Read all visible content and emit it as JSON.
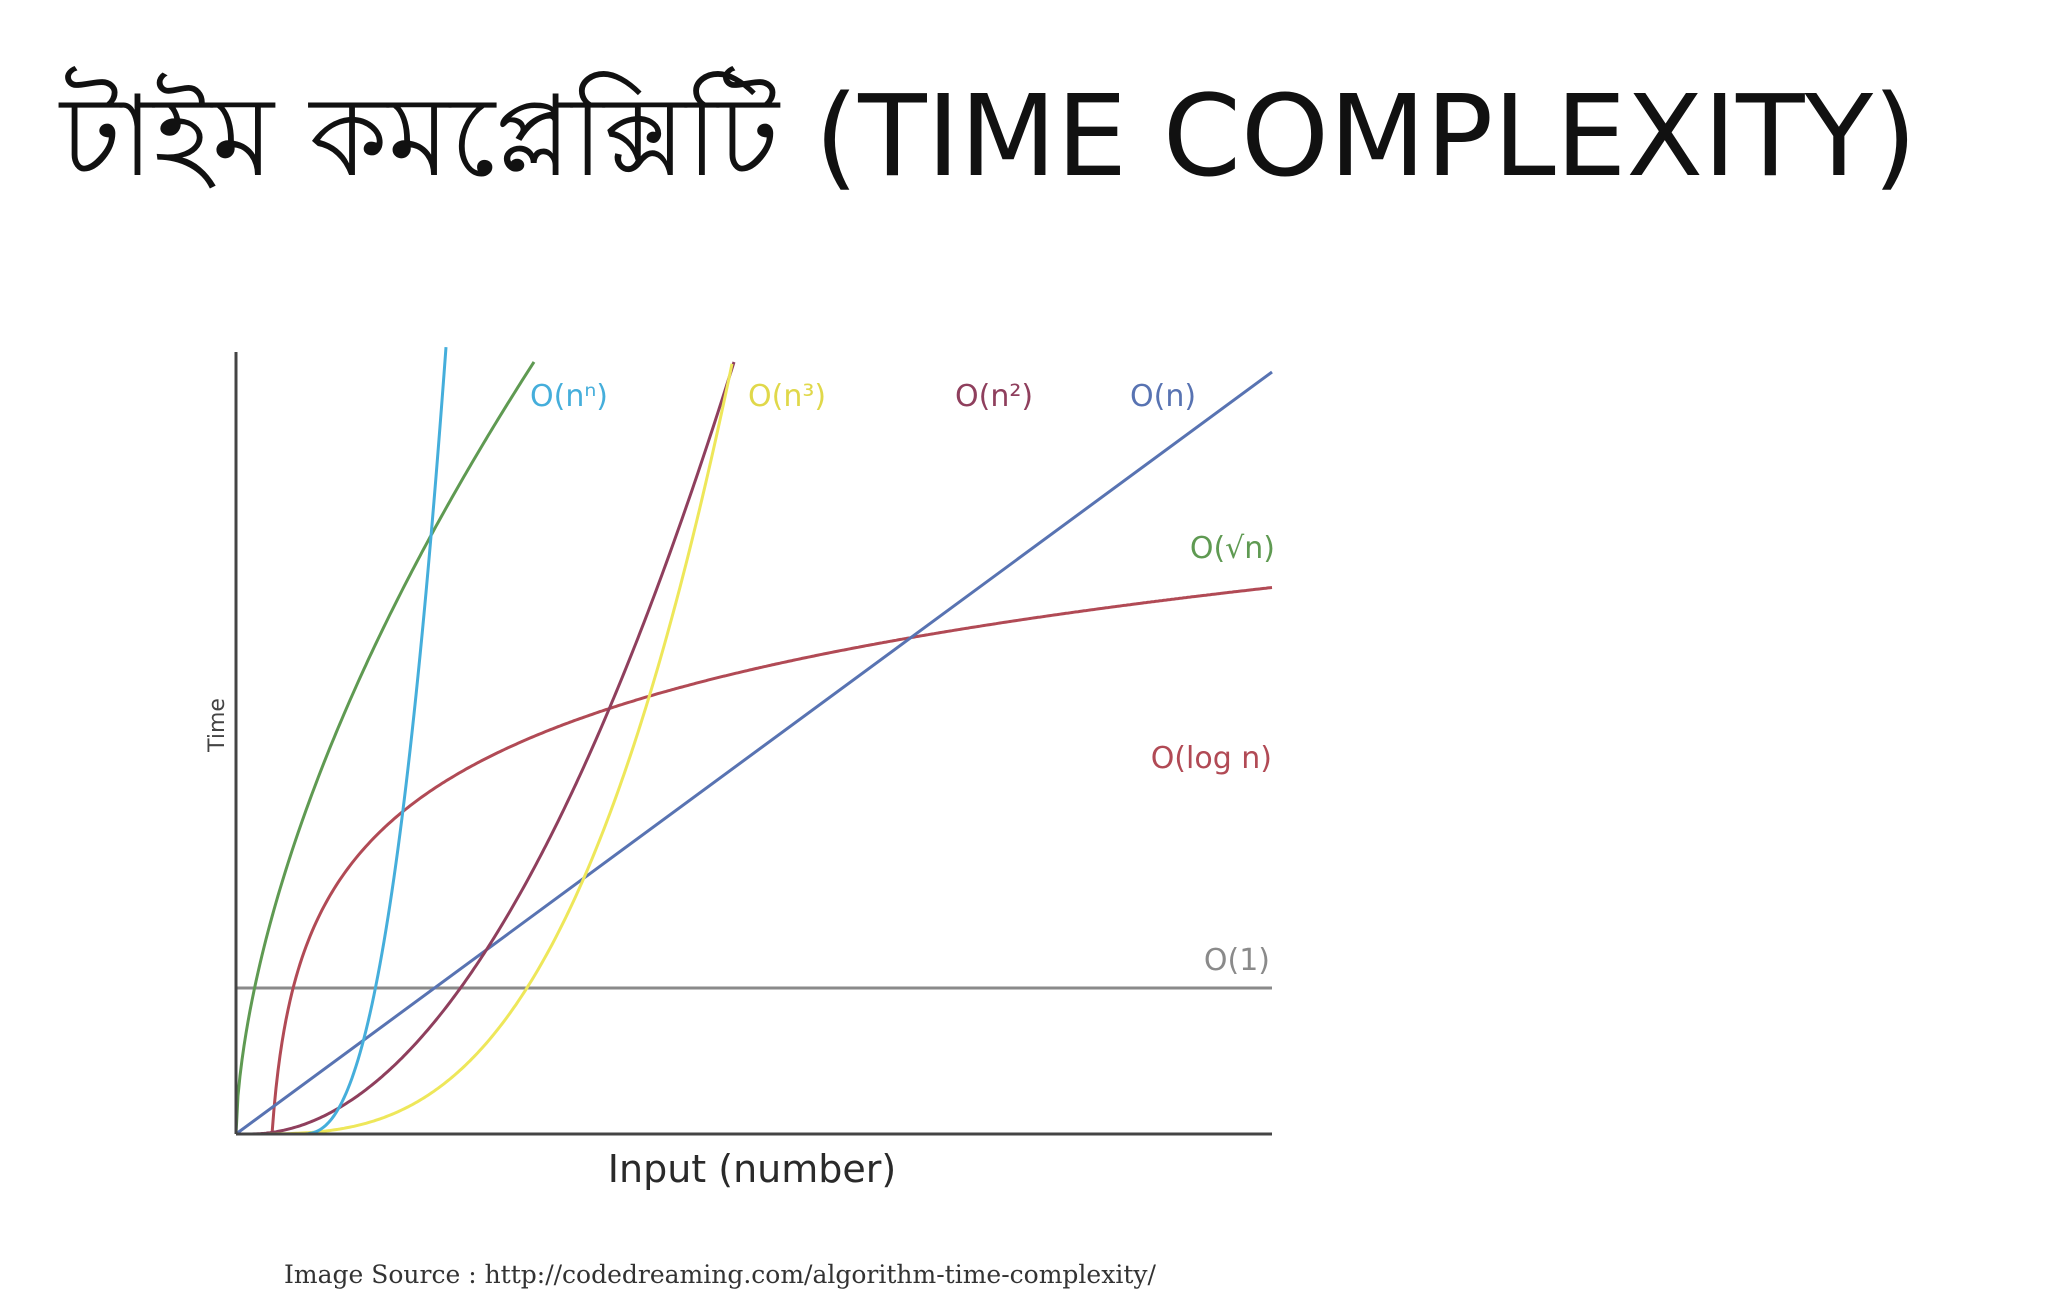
{
  "slide": {
    "title": "টাইম কমপ্লেক্সিটি (TIME COMPLEXITY)",
    "source_note": "Image Source : http://codedreaming.com/algorithm-time-complexity/"
  },
  "chart_data": {
    "type": "line",
    "xlabel": "Input (number)",
    "ylabel": "Time",
    "grid": false,
    "series": [
      {
        "name": "O(1)",
        "color": "#8a8a8a",
        "points": []
      },
      {
        "name": "O(log n)",
        "color": "#b14a55",
        "points": []
      },
      {
        "name": "O(√n)",
        "color": "#5f9a52",
        "points": []
      },
      {
        "name": "O(n)",
        "color": "#5873b2",
        "points": []
      },
      {
        "name": "O(n²)",
        "color": "#8f3f5d",
        "points": []
      },
      {
        "name": "O(n³)",
        "color": "#eee75a",
        "points": []
      },
      {
        "name": "O(nⁿ)",
        "color": "#45aedb",
        "points": []
      }
    ]
  }
}
